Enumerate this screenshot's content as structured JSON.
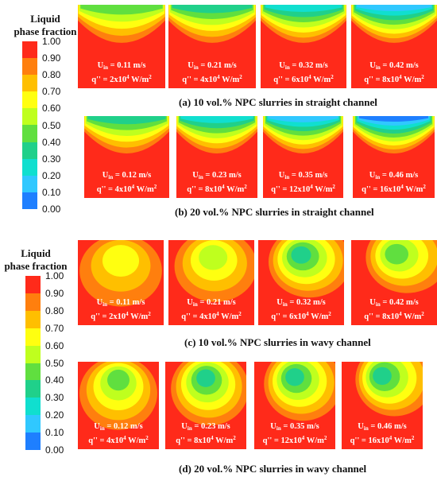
{
  "legends": [
    {
      "title_line1": "Liquid",
      "title_line2": "phase fraction",
      "ticks": [
        "1.00",
        "0.90",
        "0.80",
        "0.70",
        "0.60",
        "0.50",
        "0.40",
        "0.30",
        "0.20",
        "0.10",
        "0.00"
      ]
    },
    {
      "title_line1": "Liquid",
      "title_line2": "phase fraction",
      "ticks": [
        "1.00",
        "0.90",
        "0.80",
        "0.70",
        "0.60",
        "0.50",
        "0.40",
        "0.30",
        "0.20",
        "0.10",
        "0.00"
      ]
    }
  ],
  "colorscale": [
    "#ff2a1a",
    "#ff7f0e",
    "#ffbf00",
    "#ffff10",
    "#bfff1e",
    "#60df3f",
    "#20d08a",
    "#10dfcf",
    "#30c8ff",
    "#1e7fff",
    "#1a35f0"
  ],
  "groups": [
    {
      "caption": "(a) 10 vol.% NPC slurries in straight channel",
      "panels": [
        {
          "u": "0.11 m/s",
          "q_base": "2x10",
          "q_exp": "4",
          "q_unit": " W/m",
          "q_unit_exp": "2",
          "level": 0.5
        },
        {
          "u": "0.21 m/s",
          "q_base": "4x10",
          "q_exp": "4",
          "q_unit": " W/m",
          "q_unit_exp": "2",
          "level": 0.35
        },
        {
          "u": "0.32 m/s",
          "q_base": "6x10",
          "q_exp": "4",
          "q_unit": " W/m",
          "q_unit_exp": "2",
          "level": 0.3
        },
        {
          "u": "0.42 m/s",
          "q_base": "8x10",
          "q_exp": "4",
          "q_unit": " W/m",
          "q_unit_exp": "2",
          "level": 0.2
        }
      ]
    },
    {
      "caption": "(b) 20 vol.% NPC slurries in straight channel",
      "panels": [
        {
          "u": "0.12 m/s",
          "q_base": "4x10",
          "q_exp": "4",
          "q_unit": " W/m",
          "q_unit_exp": "2",
          "level": 0.35
        },
        {
          "u": "0.23 m/s",
          "q_base": "8x10",
          "q_exp": "4",
          "q_unit": " W/m",
          "q_unit_exp": "2",
          "level": 0.3
        },
        {
          "u": "0.35 m/s",
          "q_base": "12x10",
          "q_exp": "4",
          "q_unit": " W/m",
          "q_unit_exp": "2",
          "level": 0.2
        },
        {
          "u": "0.46 m/s",
          "q_base": "16x10",
          "q_exp": "4",
          "q_unit": " W/m",
          "q_unit_exp": "2",
          "level": 0.1
        }
      ]
    },
    {
      "caption": "(c) 10 vol.% NPC slurries in wavy channel",
      "panels": [
        {
          "u": "0.11 m/s",
          "q_base": "2x10",
          "q_exp": "4",
          "q_unit": " W/m",
          "q_unit_exp": "2",
          "level": 0.7
        },
        {
          "u": "0.21 m/s",
          "q_base": "4x10",
          "q_exp": "4",
          "q_unit": " W/m",
          "q_unit_exp": "2",
          "level": 0.55
        },
        {
          "u": "0.32 m/s",
          "q_base": "6x10",
          "q_exp": "4",
          "q_unit": " W/m",
          "q_unit_exp": "2",
          "level": 0.4
        },
        {
          "u": "0.42 m/s",
          "q_base": "8x10",
          "q_exp": "4",
          "q_unit": " W/m",
          "q_unit_exp": "2",
          "level": 0.45
        }
      ]
    },
    {
      "caption": "(d) 20 vol.% NPC slurries in wavy channel",
      "panels": [
        {
          "u": "0.12 m/s",
          "q_base": "4x10",
          "q_exp": "4",
          "q_unit": " W/m",
          "q_unit_exp": "2",
          "level": 0.45
        },
        {
          "u": "0.23 m/s",
          "q_base": "8x10",
          "q_exp": "4",
          "q_unit": " W/m",
          "q_unit_exp": "2",
          "level": 0.4
        },
        {
          "u": "0.35 m/s",
          "q_base": "12x10",
          "q_exp": "4",
          "q_unit": " W/m",
          "q_unit_exp": "2",
          "level": 0.35
        },
        {
          "u": "0.46 m/s",
          "q_base": "16x10",
          "q_exp": "4",
          "q_unit": " W/m",
          "q_unit_exp": "2",
          "level": 0.35
        }
      ]
    }
  ],
  "label_u_main": "U",
  "label_u_sub": "in",
  "label_u_eq": " = ",
  "label_q": "q'' = "
}
